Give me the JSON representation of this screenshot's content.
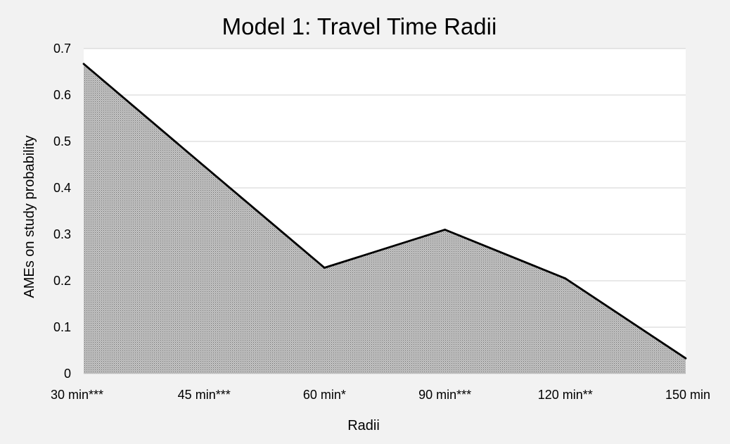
{
  "chart_data": {
    "type": "area",
    "title": "Model 1: Travel Time Radii",
    "xlabel": "Radii",
    "ylabel": "AMEs on study probability",
    "categories": [
      "30 min***",
      "45 min***",
      "60 min*",
      "90 min***",
      "120 min**",
      "150 min"
    ],
    "series": [
      {
        "values": [
          0.667,
          0.447,
          0.228,
          0.31,
          0.205,
          0.033
        ]
      }
    ],
    "ylim": [
      0,
      0.7
    ],
    "yticks": [
      "0",
      "0.1",
      "0.2",
      "0.3",
      "0.4",
      "0.5",
      "0.6",
      "0.7"
    ],
    "grid": true,
    "legend": "none",
    "colors": {
      "background": "#f2f2f2",
      "plot_area": "#ffffff",
      "gridline": "#d9d9d9",
      "fill": "#bfbfbf",
      "hatch": "#8c8c8c",
      "line": "#000000"
    }
  }
}
